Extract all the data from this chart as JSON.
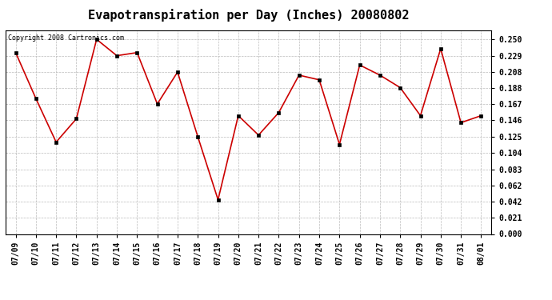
{
  "title": "Evapotranspiration per Day (Inches) 20080802",
  "copyright_text": "Copyright 2008 Cartronics.com",
  "dates": [
    "07/09",
    "07/10",
    "07/11",
    "07/12",
    "07/13",
    "07/14",
    "07/15",
    "07/16",
    "07/17",
    "07/18",
    "07/19",
    "07/20",
    "07/21",
    "07/22",
    "07/23",
    "07/24",
    "07/25",
    "07/26",
    "07/27",
    "07/28",
    "07/29",
    "07/30",
    "07/31",
    "08/01"
  ],
  "values": [
    0.233,
    0.174,
    0.118,
    0.148,
    0.25,
    0.229,
    0.233,
    0.167,
    0.208,
    0.125,
    0.044,
    0.152,
    0.127,
    0.156,
    0.204,
    0.198,
    0.115,
    0.217,
    0.204,
    0.188,
    0.152,
    0.238,
    0.143,
    0.152
  ],
  "line_color": "#cc0000",
  "marker_color": "#000000",
  "background_color": "#ffffff",
  "grid_color": "#bbbbbb",
  "yticks": [
    0.0,
    0.021,
    0.042,
    0.062,
    0.083,
    0.104,
    0.125,
    0.146,
    0.167,
    0.188,
    0.208,
    0.229,
    0.25
  ],
  "ylim": [
    0.0,
    0.262
  ],
  "title_fontsize": 11,
  "tick_fontsize": 7,
  "copyright_fontsize": 6
}
